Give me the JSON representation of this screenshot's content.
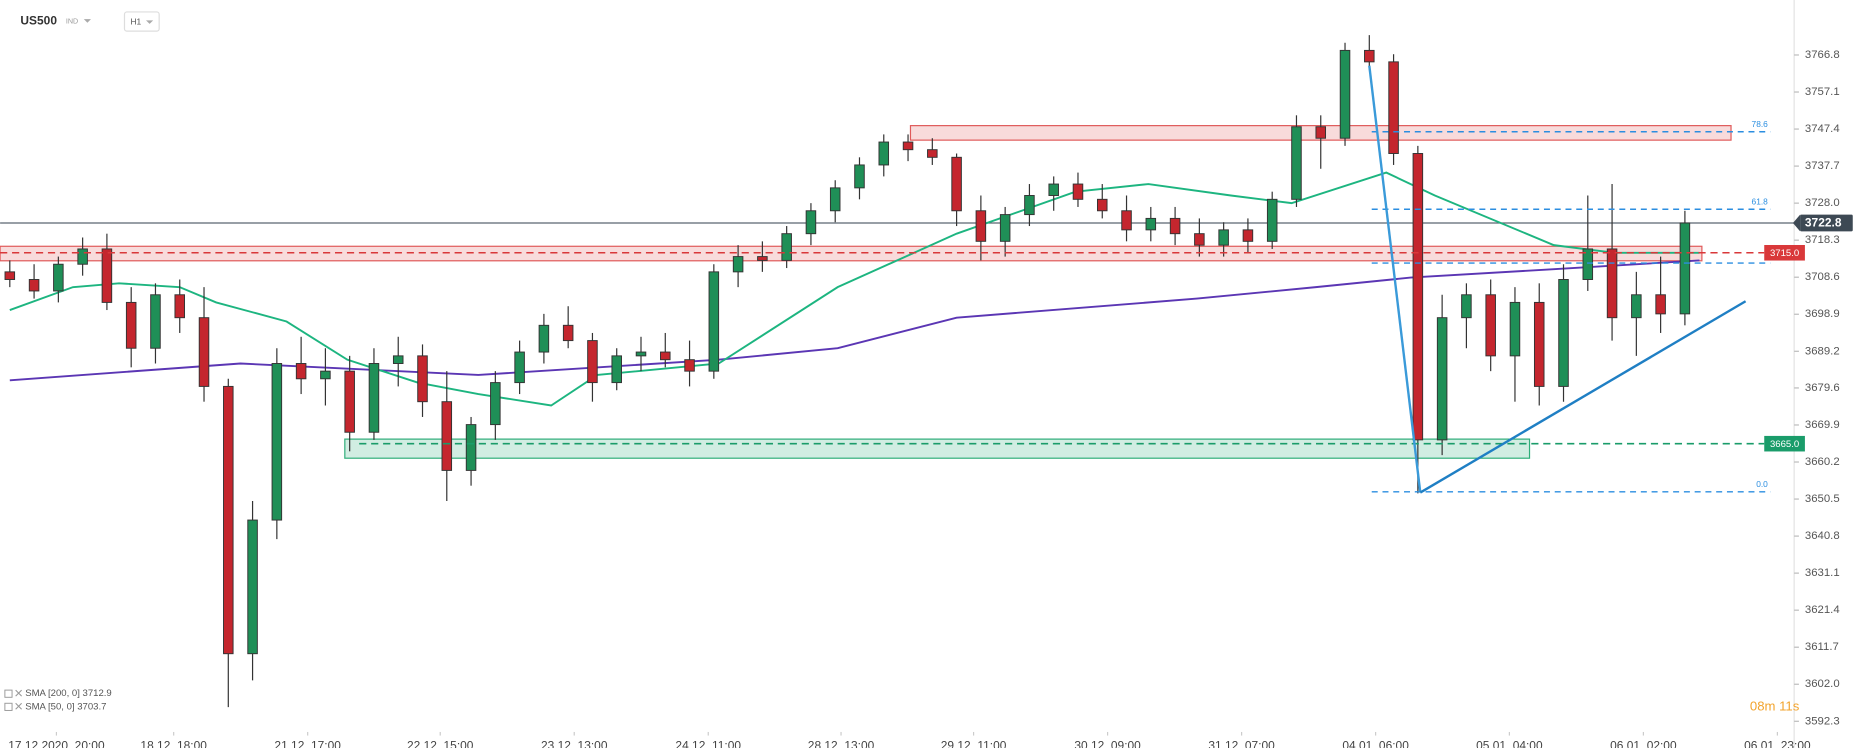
{
  "chart_data": {
    "type": "candlestick",
    "symbol": "US500",
    "market": "IND",
    "interval": "H1",
    "countdown": "08m 11s",
    "ylim": [
      3589.5,
      3781.2
    ],
    "xlim": [
      -0.4,
      73.5
    ],
    "yticks": [
      3766.8,
      3757.1,
      3747.4,
      3737.7,
      {
        "value": 3728,
        "label": "3728.0"
      },
      3718.3,
      3708.6,
      3698.9,
      3689.2,
      3679.6,
      3669.9,
      3660.2,
      3650.5,
      3640.8,
      3631.1,
      3621.4,
      3611.7,
      {
        "value": 3602,
        "label": "3602.0"
      },
      3592.3
    ],
    "xticks": [
      {
        "value": 1.92,
        "label": "17.12.2020  20:00"
      },
      {
        "value": 6.75,
        "label": "18.12  18:00"
      },
      {
        "value": 12.27,
        "label": "21.12  17:00"
      },
      {
        "value": 17.73,
        "label": "22.12  15:00"
      },
      {
        "value": 23.25,
        "label": "23.12  13:00"
      },
      {
        "value": 28.77,
        "label": "24.12  11:00"
      },
      {
        "value": 34.24,
        "label": "28.12  13:00"
      },
      {
        "value": 39.7,
        "label": "29.12  11:00"
      },
      {
        "value": 45.22,
        "label": "30.12  09:00"
      },
      {
        "value": 50.74,
        "label": "31.12  07:00"
      },
      {
        "value": 56.26,
        "label": "04.01  06:00"
      },
      {
        "value": 61.77,
        "label": "05.01  04:00"
      },
      {
        "value": 67.29,
        "label": "06.01  02:00"
      },
      {
        "value": 72.81,
        "label": "06.01  23:00"
      }
    ],
    "up_color": "#1f8f57",
    "down_color": "#c4262e",
    "open": [
      3710,
      3708,
      3705,
      3712,
      3716,
      3702,
      3690,
      3704,
      3698,
      3680,
      3610,
      3645,
      3686,
      3682,
      3684,
      3668,
      3686,
      3688,
      3676,
      3658,
      3670,
      3681,
      3689,
      3696,
      3692,
      3681,
      3688,
      3689,
      3687,
      3684,
      3710,
      3714,
      3713,
      3720,
      3726,
      3732,
      3738,
      3744,
      3742,
      3740,
      3726,
      3718,
      3725,
      3730,
      3733,
      3729,
      3726,
      3721,
      3724,
      3720,
      3717,
      3721,
      3718,
      3729,
      3748,
      3745,
      3768,
      3765,
      3741,
      3666,
      3698,
      3704,
      3688,
      3702,
      3680,
      3708,
      3716,
      3698,
      3704,
      3699
    ],
    "high": [
      3713,
      3712,
      3714,
      3719,
      3720,
      3706,
      3707,
      3708,
      3706,
      3682,
      3650,
      3690,
      3693,
      3690,
      3688,
      3690,
      3693,
      3691,
      3684,
      3672,
      3684,
      3692,
      3699,
      3701,
      3694,
      3690,
      3693,
      3694,
      3692,
      3712,
      3717,
      3718,
      3722,
      3728,
      3734,
      3740,
      3746,
      3746,
      3745,
      3741,
      3730,
      3727,
      3733,
      3735,
      3736,
      3733,
      3730,
      3727,
      3727,
      3724,
      3723,
      3724,
      3731,
      3751,
      3751,
      3770,
      3772,
      3767,
      3743,
      3704,
      3707,
      3708,
      3706,
      3707,
      3712,
      3730,
      3733,
      3710,
      3714,
      3726
    ],
    "low": [
      3706,
      3703,
      3702,
      3709,
      3700,
      3685,
      3686,
      3694,
      3676,
      3596,
      3603,
      3640,
      3678,
      3675,
      3663,
      3666,
      3680,
      3672,
      3650,
      3654,
      3666,
      3678,
      3686,
      3690,
      3676,
      3679,
      3684,
      3685,
      3680,
      3682,
      3706,
      3710,
      3711,
      3717,
      3723,
      3729,
      3735,
      3739,
      3738,
      3722,
      3713,
      3714,
      3722,
      3726,
      3727,
      3724,
      3718,
      3718,
      3717,
      3714,
      3714,
      3715,
      3716,
      3727,
      3737,
      3743,
      3763,
      3738,
      3652,
      3662,
      3690,
      3684,
      3676,
      3675,
      3676,
      3705,
      3692,
      3688,
      3694,
      3696
    ],
    "close": [
      3708,
      3705,
      3712,
      3716,
      3702,
      3690,
      3704,
      3698,
      3680,
      3610,
      3645,
      3686,
      3682,
      3684,
      3668,
      3686,
      3688,
      3676,
      3658,
      3670,
      3681,
      3689,
      3696,
      3692,
      3681,
      3688,
      3689,
      3687,
      3684,
      3710,
      3714,
      3713,
      3720,
      3726,
      3732,
      3738,
      3744,
      3742,
      3740,
      3726,
      3718,
      3725,
      3730,
      3733,
      3729,
      3726,
      3721,
      3724,
      3720,
      3717,
      3721,
      3718,
      3729,
      3748,
      3745,
      3768,
      3765,
      3741,
      3666,
      3698,
      3704,
      3688,
      3702,
      3680,
      3708,
      3716,
      3698,
      3704,
      3699,
      3722.8
    ],
    "series": [
      {
        "name": "SMA [200, 0] 3712.9",
        "color": "#5b36b4",
        "x": [
          0,
          9.5,
          19.3,
          29.2,
          34.1,
          39,
          48.9,
          53.8,
          57.7,
          63.6,
          69.6
        ],
        "values": [
          3681.6,
          3686,
          3683,
          3687,
          3690,
          3698,
          3703,
          3706,
          3708.5,
          3710.7,
          3713
        ]
      },
      {
        "name": "SMA [50, 0] 3703.7",
        "color": "#1db580",
        "x": [
          0,
          2.6,
          4.5,
          7,
          8.5,
          11.4,
          13.9,
          16.8,
          19.3,
          22.3,
          24.2,
          29.2,
          34.1,
          39,
          43.9,
          46.9,
          50.3,
          52.8,
          56.7,
          58.7,
          63.6,
          66.1,
          69.6
        ],
        "values": [
          3700,
          3706,
          3707,
          3706,
          3702,
          3697,
          3687,
          3681,
          3678,
          3675,
          3683,
          3686,
          3706,
          3720,
          3731,
          3733,
          3730,
          3728,
          3736,
          3730,
          3717,
          3715,
          3715
        ]
      }
    ],
    "price_line": 3722.8,
    "levels": [
      {
        "value": 3715,
        "label": "3715.0",
        "color": "#d9383a"
      },
      {
        "value": 3665,
        "label": "3665.0",
        "color": "#1a9c6a"
      }
    ],
    "zones": [
      {
        "from": 3712.9,
        "to": 3716.7,
        "x": [
          -0.4,
          69.7
        ],
        "color": "#e05a5a"
      },
      {
        "from": 3744.5,
        "to": 3748.3,
        "x": [
          37.1,
          70.9
        ],
        "color": "#e05a5a"
      },
      {
        "from": 3661.2,
        "to": 3666.2,
        "x": [
          13.8,
          62.6
        ],
        "color": "#2fae7a"
      }
    ],
    "fib": {
      "color": "#2b8ee0",
      "start": 56.1,
      "ratios": [
        78.6,
        61.8,
        null,
        {
          "value": 0,
          "label": "0.0"
        }
      ],
      "prices": [
        3746.7,
        3726.4,
        3712.3,
        3652.4
      ]
    },
    "lines": [
      {
        "color": "#3a9ad9",
        "x": [
          56,
          58.1
        ],
        "y": [
          3764,
          3652.2
        ]
      },
      {
        "color": "#1f7fc4",
        "x": [
          58.1,
          71.5
        ],
        "y": [
          3652.2,
          3702.3
        ]
      }
    ]
  }
}
